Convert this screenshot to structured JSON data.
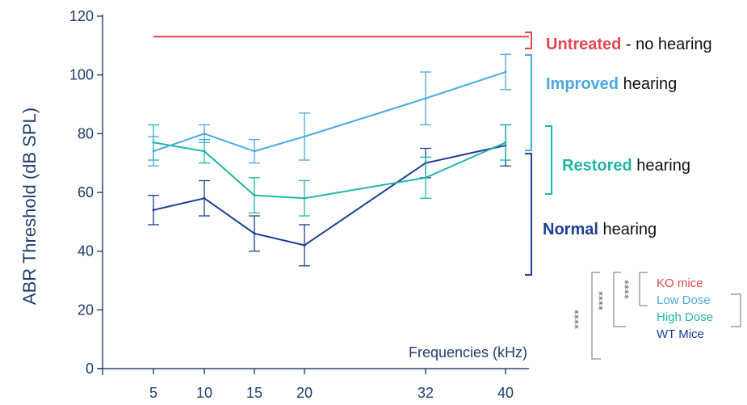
{
  "chart_data": {
    "type": "line",
    "ylabel": "ABR Threshold (dB SPL)",
    "xlabel": "Frequencies (kHz)",
    "ylim": [
      0,
      120
    ],
    "yticks": [
      0,
      20,
      40,
      60,
      80,
      100,
      120
    ],
    "x": [
      5,
      10,
      15,
      20,
      32,
      40
    ],
    "series": [
      {
        "color": "#1c3f94",
        "values": [
          54,
          58,
          46,
          42,
          70,
          76
        ],
        "errors": [
          5,
          6,
          6,
          7,
          5,
          7
        ]
      },
      {
        "color": "#1fb7a6",
        "values": [
          77,
          74,
          59,
          58,
          65,
          77
        ],
        "errors": [
          6,
          4,
          6,
          6,
          7,
          6
        ]
      },
      {
        "color": "#4aa8e0",
        "values": [
          74,
          80,
          74,
          79,
          92,
          101
        ],
        "errors": [
          5,
          3,
          4,
          8,
          9,
          6
        ]
      }
    ],
    "untreated": {
      "value": 113,
      "color": "#e0474c",
      "x_start": 5,
      "x_end": 40
    },
    "annotations": [
      {
        "bold": "Untreated",
        "rest": " - no hearing",
        "color": "#e0474c"
      },
      {
        "bold": "Improved",
        "rest": " hearing",
        "color": "#4aa8e0"
      },
      {
        "bold": "Restored",
        "rest": " hearing",
        "color": "#1fb7a6"
      },
      {
        "bold": "Normal",
        "rest": " hearing",
        "color": "#1c3f94"
      }
    ],
    "legend": [
      {
        "label": "KO mice",
        "color": "#e0474c"
      },
      {
        "label": "Low Dose",
        "color": "#4aa8e0"
      },
      {
        "label": "High Dose",
        "color": "#1fb7a6"
      },
      {
        "label": "WT Mice",
        "color": "#1c3f94"
      }
    ],
    "significance": [
      "****",
      "****",
      "****"
    ],
    "grid": false
  }
}
